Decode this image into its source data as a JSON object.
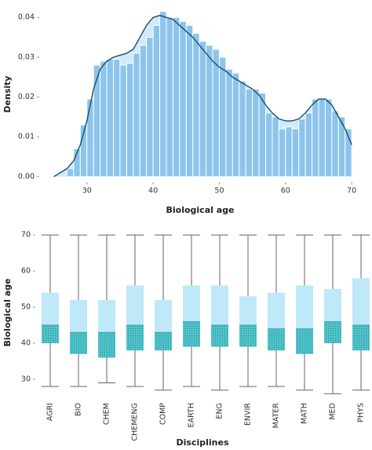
{
  "chart_data": [
    {
      "type": "histogram",
      "xlabel": "Biological age",
      "ylabel": "Density",
      "bins": [
        27,
        28,
        29,
        30,
        31,
        32,
        33,
        34,
        35,
        36,
        37,
        38,
        39,
        40,
        41,
        42,
        43,
        44,
        45,
        46,
        47,
        48,
        49,
        50,
        51,
        52,
        53,
        54,
        55,
        56,
        57,
        58,
        59,
        60,
        61,
        62,
        63,
        64,
        65,
        66,
        67,
        68,
        69,
        70
      ],
      "counts": [
        0.002,
        0.007,
        0.013,
        0.0195,
        0.028,
        0.029,
        0.0295,
        0.0295,
        0.028,
        0.0285,
        0.031,
        0.033,
        0.035,
        0.038,
        0.0415,
        0.04,
        0.04,
        0.039,
        0.038,
        0.036,
        0.034,
        0.033,
        0.032,
        0.03,
        0.027,
        0.026,
        0.024,
        0.022,
        0.022,
        0.021,
        0.016,
        0.015,
        0.012,
        0.0125,
        0.012,
        0.0145,
        0.016,
        0.0195,
        0.0195,
        0.0195,
        0.0165,
        0.015,
        0.012
      ],
      "color": "#8cc4ec",
      "density": {
        "color": "#1b4e6b",
        "fill": "#d2e9f8",
        "x": [
          25,
          27,
          28,
          29,
          30,
          31,
          32,
          33,
          34,
          35,
          36,
          37,
          38,
          39,
          40,
          41,
          42,
          43,
          44,
          45,
          46,
          47,
          48,
          49,
          50,
          51,
          52,
          53,
          54,
          55,
          56,
          57,
          58,
          59,
          60,
          61,
          62,
          63,
          64,
          65,
          66,
          67,
          68,
          69,
          70
        ],
        "values": [
          0.0,
          0.002,
          0.004,
          0.008,
          0.014,
          0.022,
          0.027,
          0.029,
          0.03,
          0.0305,
          0.031,
          0.032,
          0.035,
          0.038,
          0.04,
          0.0405,
          0.04,
          0.0395,
          0.038,
          0.0365,
          0.035,
          0.033,
          0.031,
          0.029,
          0.0275,
          0.0265,
          0.025,
          0.024,
          0.023,
          0.022,
          0.0205,
          0.018,
          0.016,
          0.0145,
          0.014,
          0.014,
          0.0145,
          0.016,
          0.018,
          0.0195,
          0.0195,
          0.018,
          0.015,
          0.012,
          0.008
        ]
      },
      "xlim": [
        22.8,
        71.4
      ],
      "xticks": [
        30,
        40,
        50,
        60,
        70
      ],
      "ylim": [
        -0.0014,
        0.0428
      ],
      "yticks": [
        {
          "value": 0,
          "label": "0.00"
        },
        {
          "value": 0.01,
          "label": "0.01"
        },
        {
          "value": 0.02,
          "label": "0.02"
        },
        {
          "value": 0.03,
          "label": "0.03"
        },
        {
          "value": 0.04,
          "label": "0.04"
        }
      ]
    },
    {
      "type": "box",
      "xlabel": "Disciplines",
      "ylabel": "Biological age",
      "categories": [
        "AGRI",
        "BIO",
        "CHEM",
        "CHEMENG",
        "COMP",
        "EARTH",
        "ENG",
        "ENVIR",
        "MATER",
        "MATH",
        "MED",
        "PHYS"
      ],
      "min": [
        28,
        28,
        29,
        28,
        27,
        28,
        27,
        28,
        28,
        27,
        26,
        27
      ],
      "q1": [
        40,
        37,
        36,
        38,
        38,
        39,
        39,
        39,
        38,
        37,
        40,
        38
      ],
      "median": [
        45,
        43,
        43,
        45,
        43,
        46,
        45,
        45,
        44,
        44,
        46,
        45
      ],
      "q3": [
        54,
        52,
        52,
        56,
        52,
        56,
        56,
        53,
        54,
        56,
        55,
        58
      ],
      "max": [
        70,
        70,
        70,
        70,
        70,
        70,
        70,
        70,
        70,
        70,
        70,
        70
      ],
      "upper_color": "#bfe8f8",
      "lower_color": "#4fc3c9",
      "ylim": [
        25.2,
        72
      ],
      "yticks": [
        30,
        40,
        50,
        60,
        70
      ]
    }
  ]
}
